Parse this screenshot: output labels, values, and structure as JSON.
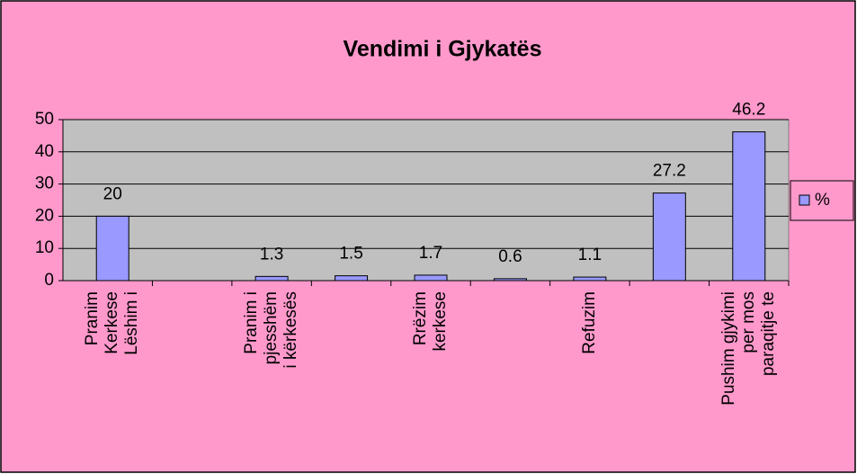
{
  "chart_data": {
    "type": "bar",
    "title": "Vendimi i Gjykatës",
    "categories": [
      "Pranim Kerkese Lëshim i",
      null,
      "Pranim i pjesshëm i kërkesës",
      null,
      "Rrëzim kerkese",
      null,
      "Refuzim",
      null,
      "Pushim gjykimi per mos paraqitje te"
    ],
    "series": [
      {
        "name": "%",
        "color": "#9999ff",
        "values": [
          20,
          null,
          1.3,
          1.5,
          1.7,
          0.6,
          1.1,
          27.2,
          46.2
        ]
      }
    ],
    "ylim": [
      0,
      50
    ],
    "yticks": [
      0,
      10,
      20,
      30,
      40,
      50
    ],
    "grid": true,
    "legend": "right"
  }
}
